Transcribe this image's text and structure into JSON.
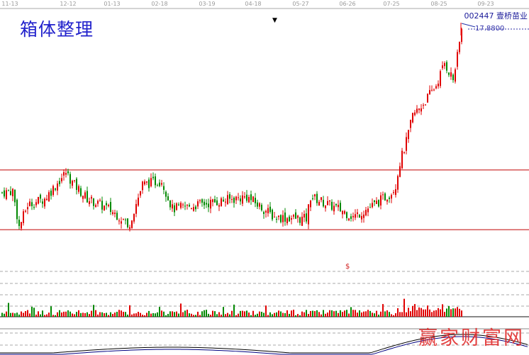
{
  "header": {
    "title": "箱体整理",
    "stock_code": "002447",
    "stock_name": "壹桥苗业",
    "last_price_label": "17.8800",
    "volume_marker": "$",
    "watermark": "赢家财富网"
  },
  "chart_data": {
    "type": "candlestick",
    "x_ticks": [
      "11-13",
      "12-12",
      "01-13",
      "02-18",
      "03-19",
      "04-18",
      "05-27",
      "06-26",
      "07-25",
      "08-25",
      "09-23"
    ],
    "price_note_last": 17.88,
    "box_lines": [
      10.92,
      7.97
    ],
    "close_anchors": [
      [
        0,
        9.8
      ],
      [
        5,
        9.9
      ],
      [
        8,
        8.1
      ],
      [
        12,
        9.2
      ],
      [
        20,
        9.5
      ],
      [
        30,
        10.8
      ],
      [
        33,
        10.3
      ],
      [
        40,
        9.5
      ],
      [
        50,
        9.0
      ],
      [
        58,
        8.4
      ],
      [
        59,
        8.0
      ],
      [
        66,
        10.2
      ],
      [
        75,
        10.4
      ],
      [
        80,
        9.0
      ],
      [
        98,
        9.3
      ],
      [
        115,
        9.6
      ],
      [
        128,
        8.6
      ],
      [
        143,
        8.5
      ],
      [
        145,
        9.6
      ],
      [
        160,
        8.9
      ],
      [
        165,
        8.6
      ],
      [
        175,
        9.2
      ],
      [
        183,
        9.8
      ],
      [
        185,
        10.2
      ],
      [
        187,
        11.3
      ],
      [
        190,
        12.3
      ],
      [
        193,
        13.6
      ],
      [
        198,
        14.2
      ],
      [
        204,
        15.1
      ],
      [
        208,
        16.2
      ],
      [
        212,
        15.4
      ],
      [
        214,
        16.5
      ],
      [
        216,
        17.88
      ]
    ],
    "colors": {
      "up": "#e00000",
      "down": "#008800",
      "box": "#c00000"
    }
  }
}
